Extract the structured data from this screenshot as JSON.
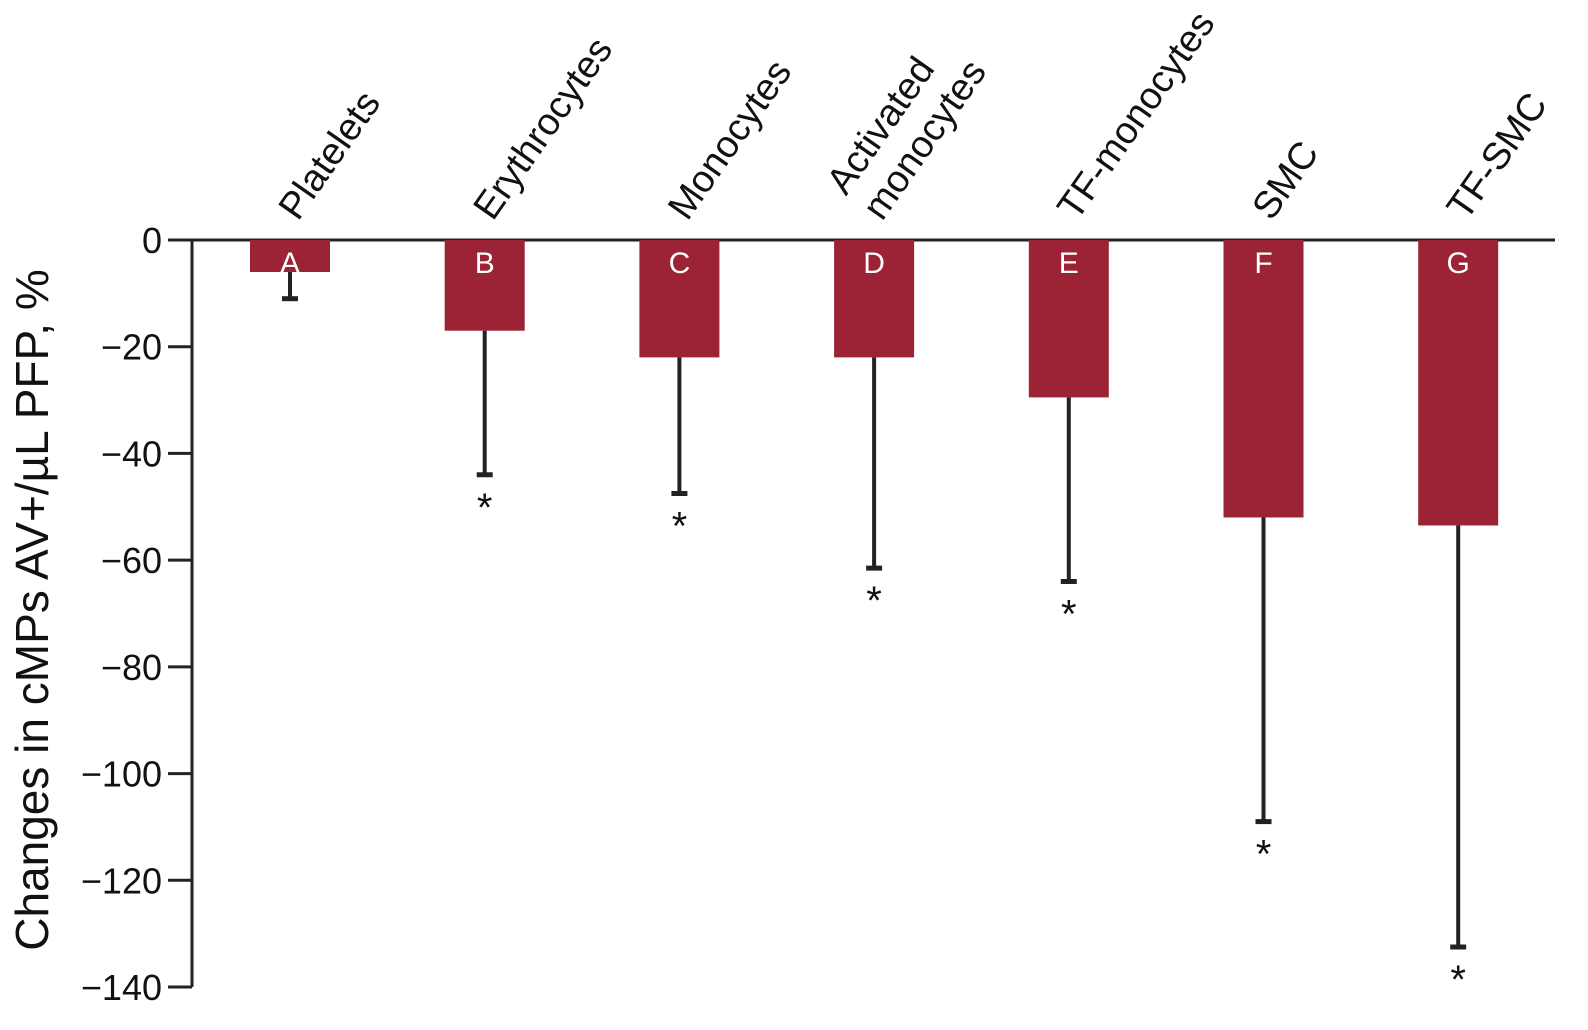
{
  "chart_data": {
    "type": "bar",
    "title": "",
    "xlabel": "",
    "ylabel": "Changes in cMPs AV+/µL PFP, %",
    "ylim": [
      -140,
      0
    ],
    "yticks": [
      0,
      -20,
      -40,
      -60,
      -80,
      -100,
      -120,
      -140
    ],
    "ytick_labels": [
      "0",
      "−20",
      "−40",
      "−60",
      "−80",
      "−100",
      "−120",
      "−140"
    ],
    "grid": false,
    "legend": "none",
    "categories": [
      [
        "Platelets"
      ],
      [
        "Erythrocytes"
      ],
      [
        "Monocytes"
      ],
      [
        "Activated",
        "monocytes"
      ],
      [
        "TF-monocytes"
      ],
      [
        "SMC"
      ],
      [
        "TF-SMC"
      ]
    ],
    "bar_letters": [
      "A",
      "B",
      "C",
      "D",
      "E",
      "F",
      "G"
    ],
    "values": [
      -6,
      -17,
      -22,
      -22,
      -29.5,
      -52,
      -53.5
    ],
    "error": [
      5,
      27,
      25.5,
      39.5,
      34.5,
      57,
      79
    ],
    "significant": [
      false,
      true,
      true,
      true,
      true,
      true,
      true
    ],
    "significance_marker": "*",
    "bar_color": "#9B2335",
    "axis_color": "#222222",
    "text_color": "#111111",
    "letter_color": "#ffffff"
  }
}
